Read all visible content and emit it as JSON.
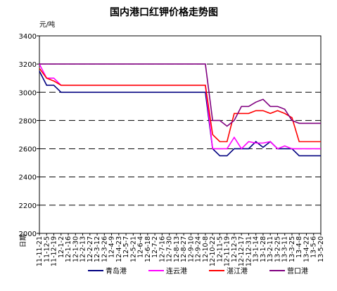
{
  "chart_data": {
    "type": "line",
    "title": "国内港口红钾价格走势图",
    "ylabel": "元/吨",
    "xlabel": "日期",
    "ylim": [
      2000,
      3400
    ],
    "yticks": [
      2000,
      2200,
      2400,
      2600,
      2800,
      3000,
      3200,
      3400
    ],
    "grid": true,
    "legend_position": "bottom",
    "x": [
      "11-11-21",
      "11-12-5",
      "11-12-19",
      "12-1-2",
      "12-1-16",
      "12-1-30",
      "12-2-13",
      "12-2-27",
      "12-3-12",
      "12-3-26",
      "12-4-9",
      "12-4-23",
      "12-5-7",
      "12-5-21",
      "12-6-4",
      "12-6-18",
      "12-7-2",
      "12-7-16",
      "12-7-30",
      "12-8-13",
      "12-8-27",
      "12-9-10",
      "12-9-24",
      "12-10-8",
      "12-10-22",
      "12-11-5",
      "12-11-19",
      "12-12-3",
      "12-12-17",
      "12-12-31",
      "13-1-14",
      "13-1-28",
      "13-2-11",
      "13-2-25",
      "13-3-11",
      "13-3-25",
      "13-4-8",
      "13-4-22",
      "13-5-6",
      "13-5-20"
    ],
    "series": [
      {
        "name": "青岛港",
        "color": "#000080",
        "values": [
          3150,
          3050,
          3050,
          3000,
          3000,
          3000,
          3000,
          3000,
          3000,
          3000,
          3000,
          3000,
          3000,
          3000,
          3000,
          3000,
          3000,
          3000,
          3000,
          3000,
          3000,
          3000,
          3000,
          3000,
          2600,
          2550,
          2550,
          2600,
          2600,
          2600,
          2650,
          2610,
          2650,
          2600,
          2600,
          2600,
          2550,
          2550,
          2550,
          2550
        ]
      },
      {
        "name": "连云港",
        "color": "#FF00FF",
        "values": [
          3200,
          3100,
          3100,
          3050,
          3050,
          3050,
          3050,
          3050,
          3050,
          3050,
          3050,
          3050,
          3050,
          3050,
          3050,
          3050,
          3050,
          3050,
          3050,
          3050,
          3050,
          3050,
          3050,
          3050,
          2600,
          2600,
          2600,
          2680,
          2600,
          2650,
          2640,
          2640,
          2650,
          2600,
          2620,
          2600,
          2600,
          2600,
          2600,
          2600
        ]
      },
      {
        "name": "湛江港",
        "color": "#FF0000",
        "values": [
          3170,
          3100,
          3080,
          3050,
          3050,
          3050,
          3050,
          3050,
          3050,
          3050,
          3050,
          3050,
          3050,
          3050,
          3050,
          3050,
          3050,
          3050,
          3050,
          3050,
          3050,
          3050,
          3050,
          3050,
          2700,
          2650,
          2650,
          2850,
          2850,
          2850,
          2870,
          2870,
          2850,
          2870,
          2850,
          2820,
          2650,
          2650,
          2650,
          2650
        ]
      },
      {
        "name": "营口港",
        "color": "#800080",
        "values": [
          3200,
          3200,
          3200,
          3200,
          3200,
          3200,
          3200,
          3200,
          3200,
          3200,
          3200,
          3200,
          3200,
          3200,
          3200,
          3200,
          3200,
          3200,
          3200,
          3200,
          3200,
          3200,
          3200,
          3200,
          2800,
          2800,
          2760,
          2800,
          2900,
          2900,
          2930,
          2950,
          2900,
          2900,
          2880,
          2800,
          2780,
          2780,
          2780,
          2780
        ]
      }
    ]
  }
}
